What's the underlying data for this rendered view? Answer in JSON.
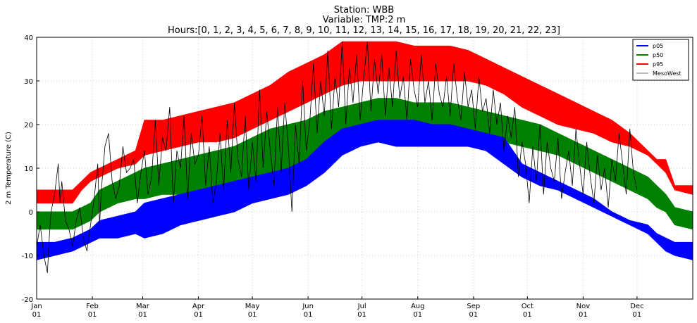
{
  "chart_data": {
    "type": "area",
    "title_lines": [
      "Station: WBB",
      "Variable: TMP:2 m",
      "Hours:[0, 1, 2, 3, 4, 5, 6, 7, 8, 9, 10, 11, 12, 13, 14, 15, 16, 17, 18, 19, 20, 21, 22, 23]"
    ],
    "ylabel": "2 m Temperature (C)",
    "xlabel": "",
    "ylim": [
      -20,
      40
    ],
    "yticks": [
      -20,
      -10,
      0,
      10,
      20,
      30,
      40
    ],
    "xlim_day": [
      0,
      365
    ],
    "xticks": [
      {
        "day": 0,
        "line1": "Jan",
        "line2": "01"
      },
      {
        "day": 31,
        "line1": "Feb",
        "line2": "01"
      },
      {
        "day": 59,
        "line1": "Mar",
        "line2": "01"
      },
      {
        "day": 90,
        "line1": "Apr",
        "line2": "01"
      },
      {
        "day": 120,
        "line1": "May",
        "line2": "01"
      },
      {
        "day": 151,
        "line1": "Jun",
        "line2": "01"
      },
      {
        "day": 181,
        "line1": "Jul",
        "line2": "01"
      },
      {
        "day": 212,
        "line1": "Aug",
        "line2": "01"
      },
      {
        "day": 243,
        "line1": "Sep",
        "line2": "01"
      },
      {
        "day": 273,
        "line1": "Oct",
        "line2": "01"
      },
      {
        "day": 304,
        "line1": "Nov",
        "line2": "01"
      },
      {
        "day": 334,
        "line1": "Dec",
        "line2": "01"
      }
    ],
    "grid": true,
    "legend_position": "top-right",
    "legend": [
      {
        "label": "p05",
        "color": "#0000ff"
      },
      {
        "label": "p50",
        "color": "#008000"
      },
      {
        "label": "p95",
        "color": "#ff0000"
      },
      {
        "label": "MesoWest",
        "color": "#bbbbbb"
      }
    ],
    "series": [
      {
        "name": "p95",
        "color": "#ff0000",
        "x_day": [
          0,
          10,
          20,
          25,
          30,
          35,
          45,
          55,
          60,
          70,
          80,
          90,
          100,
          110,
          120,
          130,
          140,
          150,
          160,
          170,
          180,
          190,
          200,
          210,
          220,
          230,
          240,
          250,
          260,
          270,
          280,
          290,
          300,
          310,
          320,
          330,
          340,
          345,
          350,
          355,
          365
        ],
        "lower": [
          2,
          2,
          2,
          5,
          7,
          8,
          10,
          11,
          13,
          14,
          15,
          16,
          16,
          17,
          19,
          21,
          23,
          25,
          27,
          29,
          30,
          30,
          30,
          30,
          30,
          30,
          30,
          29,
          27,
          24,
          22,
          20,
          19,
          18,
          16,
          15,
          13,
          11,
          9,
          5,
          4
        ],
        "upper": [
          5,
          5,
          5,
          7,
          9,
          10,
          12,
          14,
          21,
          21,
          22,
          23,
          24,
          25,
          27,
          29,
          32,
          34,
          36,
          39,
          39,
          39,
          39,
          38,
          38,
          38,
          37,
          35,
          33,
          31,
          29,
          27,
          25,
          23,
          21,
          18,
          14,
          12,
          12,
          6,
          6
        ]
      },
      {
        "name": "p50",
        "color": "#008000",
        "x_day": [
          0,
          10,
          20,
          25,
          30,
          35,
          45,
          55,
          60,
          70,
          80,
          90,
          100,
          110,
          120,
          130,
          140,
          150,
          160,
          170,
          180,
          190,
          200,
          210,
          220,
          230,
          240,
          250,
          260,
          270,
          280,
          290,
          300,
          310,
          320,
          330,
          340,
          345,
          350,
          355,
          365
        ],
        "lower": [
          -4,
          -4,
          -4,
          -3,
          -2,
          0,
          2,
          3,
          3,
          4,
          4,
          5,
          6,
          7,
          8,
          9,
          10,
          11,
          13,
          15,
          18,
          19,
          19,
          18,
          18,
          18,
          18,
          17,
          16,
          15,
          14,
          13,
          11,
          9,
          7,
          5,
          3,
          1,
          0,
          -3,
          -4
        ],
        "upper": [
          0,
          0,
          0,
          1,
          2,
          5,
          7,
          9,
          10,
          11,
          12,
          13,
          14,
          15,
          17,
          19,
          20,
          21,
          23,
          24,
          25,
          26,
          26,
          25,
          25,
          25,
          24,
          23,
          22,
          21,
          20,
          18,
          16,
          14,
          12,
          10,
          8,
          6,
          4,
          1,
          0
        ]
      },
      {
        "name": "p05",
        "color": "#0000ff",
        "x_day": [
          0,
          10,
          20,
          25,
          30,
          35,
          45,
          55,
          60,
          70,
          80,
          90,
          100,
          110,
          120,
          130,
          140,
          150,
          160,
          170,
          180,
          190,
          200,
          210,
          220,
          230,
          240,
          250,
          260,
          270,
          280,
          290,
          300,
          310,
          320,
          330,
          340,
          345,
          350,
          355,
          365
        ],
        "lower": [
          -11,
          -10,
          -9,
          -8,
          -7,
          -6,
          -6,
          -5,
          -6,
          -5,
          -3,
          -2,
          -1,
          0,
          2,
          3,
          4,
          6,
          9,
          13,
          15,
          16,
          15,
          15,
          15,
          15,
          15,
          14,
          11,
          8,
          6,
          5,
          3,
          1,
          -1,
          -3,
          -5,
          -7,
          -9,
          -10,
          -11
        ],
        "upper": [
          -7,
          -7,
          -6,
          -5,
          -4,
          -2,
          -1,
          0,
          2,
          3,
          4,
          5,
          6,
          7,
          8,
          9,
          10,
          12,
          16,
          19,
          20,
          21,
          21,
          21,
          20,
          20,
          19,
          18,
          17,
          11,
          9,
          7,
          5,
          3,
          0,
          -2,
          -3,
          -5,
          -6,
          -7,
          -7
        ]
      },
      {
        "name": "MesoWest",
        "color": "#000000",
        "x_day": [
          0,
          2,
          4,
          6,
          7,
          8,
          10,
          12,
          13,
          14,
          16,
          18,
          20,
          22,
          24,
          26,
          28,
          30,
          32,
          34,
          35,
          36,
          38,
          40,
          42,
          44,
          46,
          48,
          50,
          52,
          54,
          56,
          58,
          60,
          62,
          64,
          66,
          68,
          70,
          72,
          74,
          76,
          78,
          80,
          82,
          84,
          86,
          88,
          90,
          92,
          94,
          96,
          98,
          100,
          102,
          104,
          106,
          108,
          110,
          112,
          114,
          116,
          118,
          120,
          122,
          124,
          126,
          128,
          130,
          132,
          134,
          136,
          138,
          140,
          142,
          144,
          146,
          148,
          150,
          152,
          154,
          156,
          158,
          160,
          162,
          164,
          166,
          168,
          170,
          172,
          174,
          176,
          178,
          180,
          182,
          184,
          186,
          188,
          190,
          192,
          194,
          196,
          198,
          200,
          202,
          204,
          206,
          208,
          210,
          212,
          214,
          216,
          218,
          220,
          222,
          224,
          226,
          228,
          230,
          232,
          234,
          236,
          238,
          240,
          242,
          244,
          246,
          248,
          250,
          252,
          254,
          256,
          258,
          260,
          262,
          264,
          266,
          268,
          270,
          272,
          274,
          276,
          278,
          280,
          282,
          284,
          286,
          288,
          290,
          292,
          294,
          296,
          298,
          300,
          302,
          304,
          306,
          308,
          310,
          312,
          314,
          316,
          318,
          320,
          322,
          324,
          326,
          328,
          330,
          332,
          334
        ],
        "y": [
          -8,
          -3,
          -10,
          -14,
          -6,
          0,
          4,
          11,
          2,
          7,
          -2,
          -4,
          -8,
          -2,
          1,
          -6,
          -9,
          -3,
          3,
          11,
          -3,
          5,
          15,
          18,
          7,
          3,
          6,
          15,
          9,
          10,
          12,
          2,
          9,
          14,
          4,
          8,
          21,
          6,
          17,
          14,
          24,
          2,
          14,
          10,
          22,
          3,
          18,
          11,
          13,
          22,
          6,
          15,
          2,
          7,
          18,
          5,
          21,
          9,
          25,
          12,
          8,
          22,
          5,
          16,
          7,
          28,
          10,
          23,
          14,
          6,
          24,
          9,
          25,
          15,
          0,
          20,
          11,
          30,
          14,
          21,
          34,
          18,
          30,
          22,
          37,
          19,
          31,
          24,
          39,
          20,
          33,
          25,
          36,
          21,
          31,
          39,
          23,
          35,
          27,
          36,
          22,
          33,
          24,
          37,
          26,
          31,
          21,
          35,
          28,
          24,
          36,
          25,
          30,
          21,
          34,
          27,
          24,
          31,
          22,
          34,
          26,
          21,
          32,
          24,
          28,
          19,
          31,
          23,
          26,
          18,
          28,
          20,
          25,
          14,
          22,
          17,
          24,
          8,
          16,
          11,
          2,
          15,
          7,
          20,
          4,
          16,
          10,
          7,
          17,
          3,
          9,
          14,
          6,
          19,
          11,
          4,
          16,
          8,
          2,
          13,
          5,
          10,
          1,
          12,
          7,
          18,
          11,
          4,
          19,
          9,
          5
        ]
      }
    ]
  }
}
